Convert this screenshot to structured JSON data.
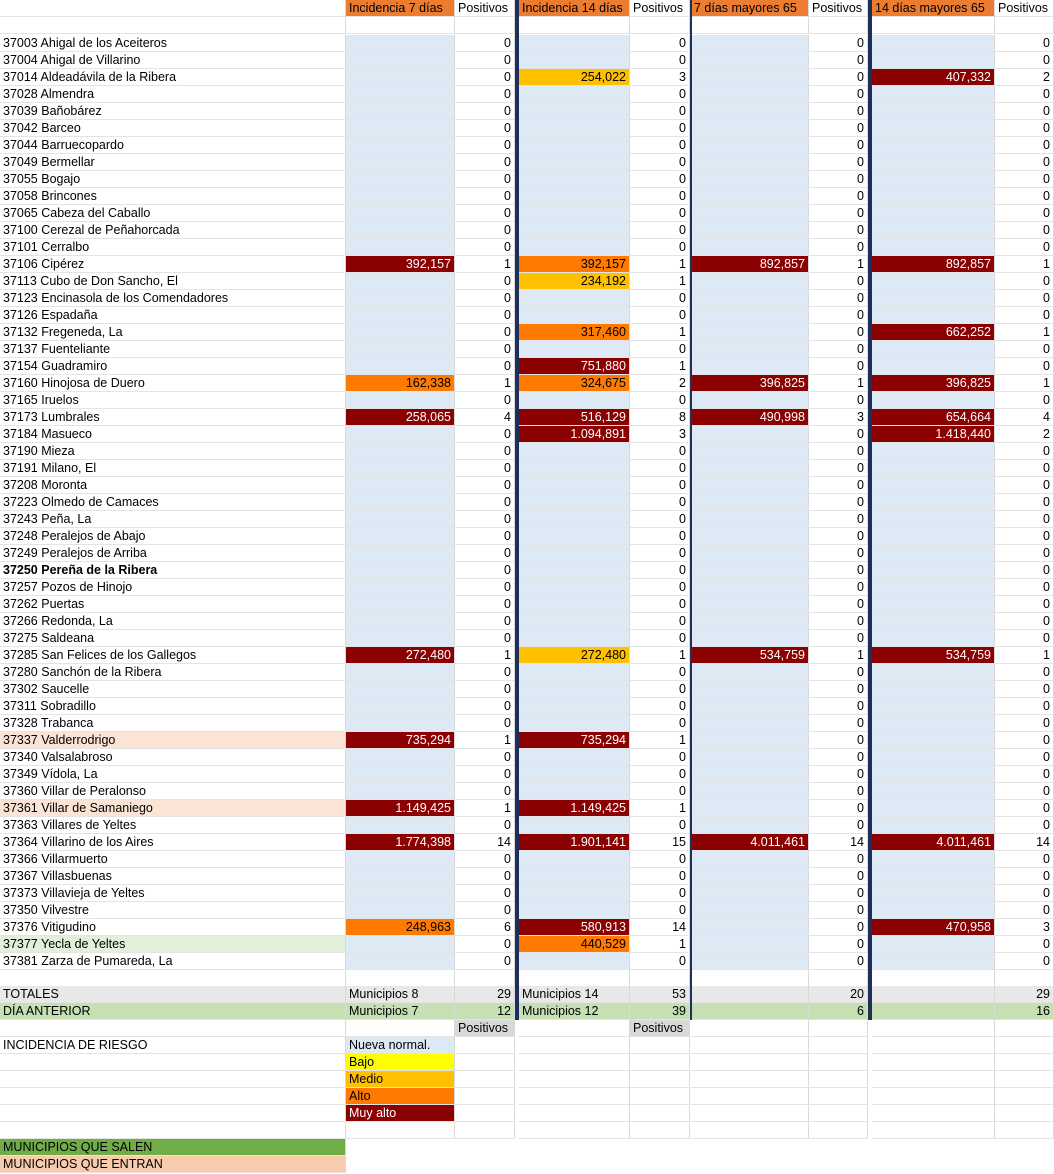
{
  "headers": {
    "i7": "Incidencia 7 días",
    "p7": "Positivos",
    "i14": "Incidencia 14 días",
    "p14": "Positivos",
    "i7m": "7 días mayores 65",
    "p7m": "Positivos",
    "i14m": "14 días mayores 65",
    "p14m": "Positivos"
  },
  "rows": [
    {
      "name": "37003 Ahigal de los Aceiteros",
      "i7": "",
      "p7": "0",
      "i14": "",
      "p14": "0",
      "i7m": "",
      "p7m": "0",
      "i14m": "",
      "p14m": "0"
    },
    {
      "name": "37004 Ahigal de Villarino",
      "i7": "",
      "p7": "0",
      "i14": "",
      "p14": "0",
      "i7m": "",
      "p7m": "0",
      "i14m": "",
      "p14m": "0"
    },
    {
      "name": "37014 Aldeadávila de la Ribera",
      "i7": "",
      "p7": "0",
      "i14": "254,022",
      "p14": "3",
      "i7m": "",
      "p7m": "0",
      "i14m": "407,332",
      "p14m": "2"
    },
    {
      "name": "37028 Almendra",
      "i7": "",
      "p7": "0",
      "i14": "",
      "p14": "0",
      "i7m": "",
      "p7m": "0",
      "i14m": "",
      "p14m": "0"
    },
    {
      "name": "37039 Bañobárez",
      "i7": "",
      "p7": "0",
      "i14": "",
      "p14": "0",
      "i7m": "",
      "p7m": "0",
      "i14m": "",
      "p14m": "0"
    },
    {
      "name": "37042 Barceo",
      "i7": "",
      "p7": "0",
      "i14": "",
      "p14": "0",
      "i7m": "",
      "p7m": "0",
      "i14m": "",
      "p14m": "0"
    },
    {
      "name": "37044 Barruecopardo",
      "i7": "",
      "p7": "0",
      "i14": "",
      "p14": "0",
      "i7m": "",
      "p7m": "0",
      "i14m": "",
      "p14m": "0"
    },
    {
      "name": "37049 Bermellar",
      "i7": "",
      "p7": "0",
      "i14": "",
      "p14": "0",
      "i7m": "",
      "p7m": "0",
      "i14m": "",
      "p14m": "0"
    },
    {
      "name": "37055 Bogajo",
      "i7": "",
      "p7": "0",
      "i14": "",
      "p14": "0",
      "i7m": "",
      "p7m": "0",
      "i14m": "",
      "p14m": "0"
    },
    {
      "name": "37058 Brincones",
      "i7": "",
      "p7": "0",
      "i14": "",
      "p14": "0",
      "i7m": "",
      "p7m": "0",
      "i14m": "",
      "p14m": "0"
    },
    {
      "name": "37065 Cabeza del Caballo",
      "i7": "",
      "p7": "0",
      "i14": "",
      "p14": "0",
      "i7m": "",
      "p7m": "0",
      "i14m": "",
      "p14m": "0"
    },
    {
      "name": "37100 Cerezal de Peñahorcada",
      "i7": "",
      "p7": "0",
      "i14": "",
      "p14": "0",
      "i7m": "",
      "p7m": "0",
      "i14m": "",
      "p14m": "0"
    },
    {
      "name": "37101 Cerralbo",
      "i7": "",
      "p7": "0",
      "i14": "",
      "p14": "0",
      "i7m": "",
      "p7m": "0",
      "i14m": "",
      "p14m": "0"
    },
    {
      "name": "37106 Cipérez",
      "i7": "392,157",
      "p7": "1",
      "i14": "392,157",
      "p14": "1",
      "i7m": "892,857",
      "p7m": "1",
      "i14m": "892,857",
      "p14m": "1"
    },
    {
      "name": "37113 Cubo de Don Sancho, El",
      "i7": "",
      "p7": "0",
      "i14": "234,192",
      "p14": "1",
      "i7m": "",
      "p7m": "0",
      "i14m": "",
      "p14m": "0"
    },
    {
      "name": "37123 Encinasola de los Comendadores",
      "i7": "",
      "p7": "0",
      "i14": "",
      "p14": "0",
      "i7m": "",
      "p7m": "0",
      "i14m": "",
      "p14m": "0"
    },
    {
      "name": "37126 Espadaña",
      "i7": "",
      "p7": "0",
      "i14": "",
      "p14": "0",
      "i7m": "",
      "p7m": "0",
      "i14m": "",
      "p14m": "0"
    },
    {
      "name": "37132 Fregeneda, La",
      "i7": "",
      "p7": "0",
      "i14": "317,460",
      "p14": "1",
      "i7m": "",
      "p7m": "0",
      "i14m": "662,252",
      "p14m": "1"
    },
    {
      "name": "37137 Fuenteliante",
      "i7": "",
      "p7": "0",
      "i14": "",
      "p14": "0",
      "i7m": "",
      "p7m": "0",
      "i14m": "",
      "p14m": "0"
    },
    {
      "name": "37154 Guadramiro",
      "i7": "",
      "p7": "0",
      "i14": "751,880",
      "p14": "1",
      "i7m": "",
      "p7m": "0",
      "i14m": "",
      "p14m": "0"
    },
    {
      "name": "37160 Hinojosa de Duero",
      "i7": "162,338",
      "p7": "1",
      "i14": "324,675",
      "p14": "2",
      "i7m": "396,825",
      "p7m": "1",
      "i14m": "396,825",
      "p14m": "1"
    },
    {
      "name": "37165 Iruelos",
      "i7": "",
      "p7": "0",
      "i14": "",
      "p14": "0",
      "i7m": "",
      "p7m": "0",
      "i14m": "",
      "p14m": "0"
    },
    {
      "name": "37173 Lumbrales",
      "i7": "258,065",
      "p7": "4",
      "i14": "516,129",
      "p14": "8",
      "i7m": "490,998",
      "p7m": "3",
      "i14m": "654,664",
      "p14m": "4"
    },
    {
      "name": "37184 Masueco",
      "i7": "",
      "p7": "0",
      "i14": "1.094,891",
      "p14": "3",
      "i7m": "",
      "p7m": "0",
      "i14m": "1.418,440",
      "p14m": "2"
    },
    {
      "name": "37190 Mieza",
      "i7": "",
      "p7": "0",
      "i14": "",
      "p14": "0",
      "i7m": "",
      "p7m": "0",
      "i14m": "",
      "p14m": "0"
    },
    {
      "name": "37191 Milano, El",
      "i7": "",
      "p7": "0",
      "i14": "",
      "p14": "0",
      "i7m": "",
      "p7m": "0",
      "i14m": "",
      "p14m": "0"
    },
    {
      "name": "37208 Moronta",
      "i7": "",
      "p7": "0",
      "i14": "",
      "p14": "0",
      "i7m": "",
      "p7m": "0",
      "i14m": "",
      "p14m": "0"
    },
    {
      "name": "37223 Olmedo de Camaces",
      "i7": "",
      "p7": "0",
      "i14": "",
      "p14": "0",
      "i7m": "",
      "p7m": "0",
      "i14m": "",
      "p14m": "0"
    },
    {
      "name": "37243 Peña, La",
      "i7": "",
      "p7": "0",
      "i14": "",
      "p14": "0",
      "i7m": "",
      "p7m": "0",
      "i14m": "",
      "p14m": "0"
    },
    {
      "name": "37248 Peralejos de Abajo",
      "i7": "",
      "p7": "0",
      "i14": "",
      "p14": "0",
      "i7m": "",
      "p7m": "0",
      "i14m": "",
      "p14m": "0"
    },
    {
      "name": "37249 Peralejos de Arriba",
      "i7": "",
      "p7": "0",
      "i14": "",
      "p14": "0",
      "i7m": "",
      "p7m": "0",
      "i14m": "",
      "p14m": "0"
    },
    {
      "name": "37250 Pereña de la Ribera",
      "i7": "",
      "p7": "0",
      "i14": "",
      "p14": "0",
      "i7m": "",
      "p7m": "0",
      "i14m": "",
      "p14m": "0"
    },
    {
      "name": "37257 Pozos de Hinojo",
      "i7": "",
      "p7": "0",
      "i14": "",
      "p14": "0",
      "i7m": "",
      "p7m": "0",
      "i14m": "",
      "p14m": "0"
    },
    {
      "name": "37262 Puertas",
      "i7": "",
      "p7": "0",
      "i14": "",
      "p14": "0",
      "i7m": "",
      "p7m": "0",
      "i14m": "",
      "p14m": "0"
    },
    {
      "name": "37266 Redonda, La",
      "i7": "",
      "p7": "0",
      "i14": "",
      "p14": "0",
      "i7m": "",
      "p7m": "0",
      "i14m": "",
      "p14m": "0"
    },
    {
      "name": "37275 Saldeana",
      "i7": "",
      "p7": "0",
      "i14": "",
      "p14": "0",
      "i7m": "",
      "p7m": "0",
      "i14m": "",
      "p14m": "0"
    },
    {
      "name": "37285 San Felices de los Gallegos",
      "i7": "272,480",
      "p7": "1",
      "i14": "272,480",
      "p14": "1",
      "i7m": "534,759",
      "p7m": "1",
      "i14m": "534,759",
      "p14m": "1"
    },
    {
      "name": "37280 Sanchón de la Ribera",
      "i7": "",
      "p7": "0",
      "i14": "",
      "p14": "0",
      "i7m": "",
      "p7m": "0",
      "i14m": "",
      "p14m": "0"
    },
    {
      "name": "37302 Saucelle",
      "i7": "",
      "p7": "0",
      "i14": "",
      "p14": "0",
      "i7m": "",
      "p7m": "0",
      "i14m": "",
      "p14m": "0"
    },
    {
      "name": "37311 Sobradillo",
      "i7": "",
      "p7": "0",
      "i14": "",
      "p14": "0",
      "i7m": "",
      "p7m": "0",
      "i14m": "",
      "p14m": "0"
    },
    {
      "name": "37328 Trabanca",
      "i7": "",
      "p7": "0",
      "i14": "",
      "p14": "0",
      "i7m": "",
      "p7m": "0",
      "i14m": "",
      "p14m": "0"
    },
    {
      "name": "37337 Valderrodrigo",
      "i7": "735,294",
      "p7": "1",
      "i14": "735,294",
      "p14": "1",
      "i7m": "",
      "p7m": "0",
      "i14m": "",
      "p14m": "0"
    },
    {
      "name": "37340 Valsalabroso",
      "i7": "",
      "p7": "0",
      "i14": "",
      "p14": "0",
      "i7m": "",
      "p7m": "0",
      "i14m": "",
      "p14m": "0"
    },
    {
      "name": "37349 Vídola, La",
      "i7": "",
      "p7": "0",
      "i14": "",
      "p14": "0",
      "i7m": "",
      "p7m": "0",
      "i14m": "",
      "p14m": "0"
    },
    {
      "name": "37360 Villar de Peralonso",
      "i7": "",
      "p7": "0",
      "i14": "",
      "p14": "0",
      "i7m": "",
      "p7m": "0",
      "i14m": "",
      "p14m": "0"
    },
    {
      "name": "37361 Villar de Samaniego",
      "i7": "1.149,425",
      "p7": "1",
      "i14": "1.149,425",
      "p14": "1",
      "i7m": "",
      "p7m": "0",
      "i14m": "",
      "p14m": "0"
    },
    {
      "name": "37363 Villares de Yeltes",
      "i7": "",
      "p7": "0",
      "i14": "",
      "p14": "0",
      "i7m": "",
      "p7m": "0",
      "i14m": "",
      "p14m": "0"
    },
    {
      "name": "37364 Villarino de los Aires",
      "i7": "1.774,398",
      "p7": "14",
      "i14": "1.901,141",
      "p14": "15",
      "i7m": "4.011,461",
      "p7m": "14",
      "i14m": "4.011,461",
      "p14m": "14"
    },
    {
      "name": "37366 Villarmuerto",
      "i7": "",
      "p7": "0",
      "i14": "",
      "p14": "0",
      "i7m": "",
      "p7m": "0",
      "i14m": "",
      "p14m": "0"
    },
    {
      "name": "37367 Villasbuenas",
      "i7": "",
      "p7": "0",
      "i14": "",
      "p14": "0",
      "i7m": "",
      "p7m": "0",
      "i14m": "",
      "p14m": "0"
    },
    {
      "name": "37373 Villavieja de Yeltes",
      "i7": "",
      "p7": "0",
      "i14": "",
      "p14": "0",
      "i7m": "",
      "p7m": "0",
      "i14m": "",
      "p14m": "0"
    },
    {
      "name": "37350 Vilvestre",
      "i7": "",
      "p7": "0",
      "i14": "",
      "p14": "0",
      "i7m": "",
      "p7m": "0",
      "i14m": "",
      "p14m": "0"
    },
    {
      "name": "37376 Vitigudino",
      "i7": "248,963",
      "p7": "6",
      "i14": "580,913",
      "p14": "14",
      "i7m": "",
      "p7m": "0",
      "i14m": "470,958",
      "p14m": "3"
    },
    {
      "name": "37377 Yecla de Yeltes",
      "i7": "",
      "p7": "0",
      "i14": "440,529",
      "p14": "1",
      "i7m": "",
      "p7m": "0",
      "i14m": "",
      "p14m": "0"
    },
    {
      "name": "37381 Zarza de Pumareda, La",
      "i7": "",
      "p7": "0",
      "i14": "",
      "p14": "0",
      "i7m": "",
      "p7m": "0",
      "i14m": "",
      "p14m": "0"
    }
  ],
  "levels": [
    [
      0,
      0,
      0,
      0
    ],
    [
      0,
      0,
      0,
      0
    ],
    [
      0,
      2,
      0,
      4
    ],
    [
      0,
      0,
      0,
      0
    ],
    [
      0,
      0,
      0,
      0
    ],
    [
      0,
      0,
      0,
      0
    ],
    [
      0,
      0,
      0,
      0
    ],
    [
      0,
      0,
      0,
      0
    ],
    [
      0,
      0,
      0,
      0
    ],
    [
      0,
      0,
      0,
      0
    ],
    [
      0,
      0,
      0,
      0
    ],
    [
      0,
      0,
      0,
      0
    ],
    [
      0,
      0,
      0,
      0
    ],
    [
      4,
      3,
      4,
      4
    ],
    [
      0,
      2,
      0,
      0
    ],
    [
      0,
      0,
      0,
      0
    ],
    [
      0,
      0,
      0,
      0
    ],
    [
      0,
      3,
      0,
      4
    ],
    [
      0,
      0,
      0,
      0
    ],
    [
      0,
      4,
      0,
      0
    ],
    [
      3,
      3,
      4,
      4
    ],
    [
      0,
      0,
      0,
      0
    ],
    [
      4,
      4,
      4,
      4
    ],
    [
      0,
      4,
      0,
      4
    ],
    [
      0,
      0,
      0,
      0
    ],
    [
      0,
      0,
      0,
      0
    ],
    [
      0,
      0,
      0,
      0
    ],
    [
      0,
      0,
      0,
      0
    ],
    [
      0,
      0,
      0,
      0
    ],
    [
      0,
      0,
      0,
      0
    ],
    [
      0,
      0,
      0,
      0
    ],
    [
      0,
      0,
      0,
      0
    ],
    [
      0,
      0,
      0,
      0
    ],
    [
      0,
      0,
      0,
      0
    ],
    [
      0,
      0,
      0,
      0
    ],
    [
      0,
      0,
      0,
      0
    ],
    [
      4,
      2,
      4,
      4
    ],
    [
      0,
      0,
      0,
      0
    ],
    [
      0,
      0,
      0,
      0
    ],
    [
      0,
      0,
      0,
      0
    ],
    [
      0,
      0,
      0,
      0
    ],
    [
      4,
      4,
      0,
      0
    ],
    [
      0,
      0,
      0,
      0
    ],
    [
      0,
      0,
      0,
      0
    ],
    [
      0,
      0,
      0,
      0
    ],
    [
      4,
      4,
      0,
      0
    ],
    [
      0,
      0,
      0,
      0
    ],
    [
      4,
      4,
      4,
      4
    ],
    [
      0,
      0,
      0,
      0
    ],
    [
      0,
      0,
      0,
      0
    ],
    [
      0,
      0,
      0,
      0
    ],
    [
      0,
      0,
      0,
      0
    ],
    [
      3,
      4,
      0,
      4
    ],
    [
      0,
      3,
      0,
      0
    ],
    [
      0,
      0,
      0,
      0
    ]
  ],
  "highlights": {
    "31": "bold",
    "41": "in",
    "45": "in",
    "53": "out"
  },
  "totals": {
    "label": "TOTALES",
    "m7": "Municipios 8",
    "p7": "29",
    "m14": "Municipios 14",
    "p14": "53",
    "p7m": "20",
    "p14m": "29"
  },
  "previous": {
    "label": "DÍA ANTERIOR",
    "m7": "Municipios 7",
    "p7": "12",
    "m14": "Municipios 12",
    "p14": "39",
    "p7m": "6",
    "p14m": "16"
  },
  "positivos_label": "Positivos",
  "risk": {
    "title": "INCIDENCIA DE RIESGO",
    "levels": [
      {
        "label": "Nueva normal.",
        "color": "#dde9f5"
      },
      {
        "label": "Bajo",
        "color": "#ffff00"
      },
      {
        "label": "Medio",
        "color": "#ffc000"
      },
      {
        "label": "Alto",
        "color": "#ff7a00"
      },
      {
        "label": "Muy alto",
        "color": "#8b0000"
      }
    ]
  },
  "municipios_salen": "MUNICIPIOS QUE SALEN",
  "municipios_entran": "MUNICIPIOS QUE ENTRAN",
  "colors": {
    "header_orange": "#ec7c30",
    "divider": "#1f2f5c",
    "salen": "#70ad47",
    "entran": "#f8cbad"
  }
}
